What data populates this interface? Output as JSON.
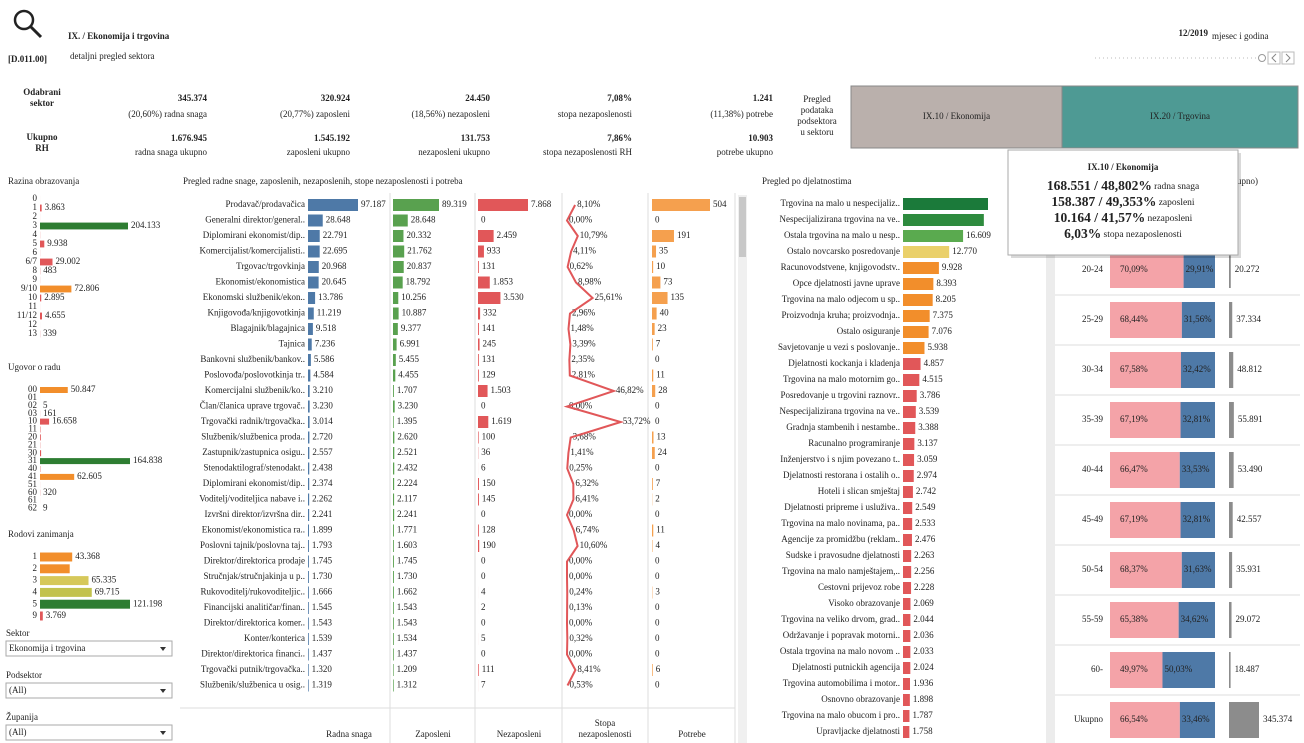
{
  "header": {
    "code": "[D.011.00]",
    "title": "IX. / Ekonomija i trgovina",
    "subtitle": "detaljni pregled sektora",
    "period": "12/2019",
    "period_label": "mjesec i godina"
  },
  "kpi": {
    "row_labels": [
      [
        "Odabrani",
        "sektor"
      ],
      [
        "Ukupno",
        "RH"
      ]
    ],
    "items": [
      {
        "value": "345.374",
        "label": "(20,60%) radna snaga",
        "total": "1.676.945",
        "total_label": "radna snaga ukupno"
      },
      {
        "value": "320.924",
        "label": "(20,77%) zaposleni",
        "total": "1.545.192",
        "total_label": "zaposleni ukupno"
      },
      {
        "value": "24.450",
        "label": "(18,56%) nezaposleni",
        "total": "131.753",
        "total_label": "nezaposleni ukupno"
      },
      {
        "value": "7,08%",
        "label": "stopa nezaposlenosti",
        "total": "7,86%",
        "total_label": "stopa nezaposlenosti RH"
      },
      {
        "value": "1.241",
        "label": "(11,38%) potrebe",
        "total": "10.903",
        "total_label": "potrebe ukupno"
      }
    ]
  },
  "subsectors": {
    "label_lines": [
      "Pregled",
      "podataka",
      "podsektora",
      "u sektoru"
    ],
    "buttons": [
      "IX.10 / Ekonomija",
      "IX.20 / Trgovina"
    ],
    "colors": [
      "#bab0ac",
      "#4e9a94"
    ]
  },
  "education": {
    "title": "Razina obrazovanja",
    "categories": [
      "0",
      "1",
      "2",
      "3",
      "4",
      "5",
      "6",
      "6/7",
      "8",
      "9",
      "9/10",
      "10",
      "11",
      "11/12",
      "12",
      "13"
    ],
    "values": [
      50,
      3863,
      100,
      204133,
      300,
      9938,
      200,
      29002,
      483,
      200,
      72806,
      2895,
      100,
      4655,
      50,
      339
    ],
    "value_labels": [
      null,
      "3.863",
      null,
      "204.133",
      null,
      "9.938",
      null,
      "29.002",
      "483",
      null,
      "72.806",
      "2.895",
      null,
      "4.655",
      null,
      "339"
    ],
    "colors": [
      "#e15759",
      "#e15759",
      "#e15759",
      "#2e7d32",
      "#e15759",
      "#e15759",
      "#e15759",
      "#e15759",
      "#e15759",
      "#e15759",
      "#f28e2b",
      "#e15759",
      "#e15759",
      "#e15759",
      "#e15759",
      "#e15759"
    ]
  },
  "contract": {
    "title": "Ugovor o radu",
    "categories": [
      "00",
      "01",
      "02",
      "03",
      "10",
      "11",
      "20",
      "21",
      "30",
      "31",
      "40",
      "41",
      "51",
      "60",
      "61",
      "62"
    ],
    "values": [
      50847,
      30,
      5,
      161,
      16658,
      800,
      1500,
      400,
      2000,
      164838,
      600,
      62605,
      100,
      320,
      50,
      9
    ],
    "value_labels": [
      "50.847",
      null,
      "5",
      "161",
      "16.658",
      null,
      null,
      null,
      null,
      "164.838",
      null,
      "62.605",
      null,
      "320",
      null,
      "9"
    ],
    "colors": [
      "#f28e2b",
      "#e15759",
      "#e15759",
      "#e15759",
      "#e15759",
      "#e15759",
      "#e15759",
      "#e15759",
      "#e15759",
      "#2e7d32",
      "#e15759",
      "#f28e2b",
      "#e15759",
      "#e15759",
      "#e15759",
      "#e15759"
    ]
  },
  "occupation_groups": {
    "title": "Rodovi zanimanja",
    "categories": [
      "1",
      "2",
      "3",
      "4",
      "5",
      "9"
    ],
    "values": [
      43368,
      40000,
      65335,
      69715,
      121198,
      3769
    ],
    "value_labels": [
      "43.368",
      null,
      "65.335",
      "69.715",
      "121.198",
      "3.769"
    ],
    "colors": [
      "#f28e2b",
      "#f28e2b",
      "#d6c85a",
      "#c2c24e",
      "#2e7d32",
      "#e15759"
    ]
  },
  "filters": [
    {
      "label": "Sektor",
      "value": "Ekonomija i trgovina"
    },
    {
      "label": "Podsektor",
      "value": "(All)"
    },
    {
      "label": "Županija",
      "value": "(All)"
    }
  ],
  "occupations": {
    "title": "Pregled radne snage, zaposlenih, nezaposlenih, stope nezaposlenosti i potreba",
    "names": [
      "Prodavač/prodavačica",
      "Generalni direktor/general..",
      "Diplomirani ekonomist/dip..",
      "Komercijalist/komercijalisti..",
      "Trgovac/trgovkinja",
      "Ekonomist/ekonomistica",
      "Ekonomski službenik/ekon..",
      "Knjigovođa/knjigovotkinja",
      "Blagajnik/blagajnica",
      "Tajnica",
      "Bankovni službenik/bankov..",
      "Poslovođa/poslovotkinja tr..",
      "Komercijalni službenik/ko..",
      "Član/članica uprave trgovač..",
      "Trgovački radnik/trgovačka..",
      "Službenik/službenica proda..",
      "Zastupnik/zastupnica osigu..",
      "Stenodaktilograf/stenodakt..",
      "Diplomirani ekonomist/dip..",
      "Voditelj/voditeljica nabave i..",
      "Izvršni direktor/izvršna dir..",
      "Ekonomist/ekonomistica ra..",
      "Poslovni tajnik/poslovna taj..",
      "Direktor/direktorica prodaje",
      "Stručnjak/stručnjakinja u p..",
      "Rukovoditelj/rukovoditeljic..",
      "Financijski analitičar/finan..",
      "Direktor/direktorica komer..",
      "Konter/konterica",
      "Direktor/direktorica financi..",
      "Trgovački putnik/trgovačka..",
      "Službenik/službenica u osig.."
    ],
    "columns": [
      {
        "name_lines": [
          "Radna snaga"
        ],
        "type": "bar",
        "color": "#4e79a7",
        "values": [
          97187,
          28648,
          22791,
          22695,
          20968,
          20645,
          13786,
          11219,
          9518,
          7236,
          5586,
          4584,
          3210,
          3230,
          3014,
          2720,
          2557,
          2438,
          2374,
          2262,
          2241,
          1899,
          1793,
          1745,
          1730,
          1666,
          1545,
          1543,
          1539,
          1437,
          1320,
          1319
        ],
        "value_labels": [
          "97.187",
          "28.648",
          "22.791",
          "22.695",
          "20.968",
          "20.645",
          "13.786",
          "11.219",
          "9.518",
          "7.236",
          "5.586",
          "4.584",
          "3.210",
          "3.230",
          "3.014",
          "2.720",
          "2.557",
          "2.438",
          "2.374",
          "2.262",
          "2.241",
          "1.899",
          "1.793",
          "1.745",
          "1.730",
          "1.666",
          "1.545",
          "1.543",
          "1.539",
          "1.437",
          "1.320",
          "1.319"
        ]
      },
      {
        "name_lines": [
          "Zaposleni"
        ],
        "type": "bar",
        "color": "#59a14f",
        "values": [
          89319,
          28648,
          20332,
          21762,
          20837,
          18792,
          10256,
          10887,
          9377,
          6991,
          5455,
          4455,
          1707,
          3230,
          1395,
          2620,
          2521,
          2432,
          2224,
          2117,
          2241,
          1771,
          1603,
          1745,
          1730,
          1662,
          1543,
          1543,
          1534,
          1437,
          1209,
          1312
        ],
        "value_labels": [
          "89.319",
          "28.648",
          "20.332",
          "21.762",
          "20.837",
          "18.792",
          "10.256",
          "10.887",
          "9.377",
          "6.991",
          "5.455",
          "4.455",
          "1.707",
          "3.230",
          "1.395",
          "2.620",
          "2.521",
          "2.432",
          "2.224",
          "2.117",
          "2.241",
          "1.771",
          "1.603",
          "1.745",
          "1.730",
          "1.662",
          "1.543",
          "1.543",
          "1.534",
          "1.437",
          "1.209",
          "1.312"
        ]
      },
      {
        "name_lines": [
          "Nezaposleni"
        ],
        "type": "bar",
        "color": "#e15759",
        "values": [
          7868,
          0,
          2459,
          933,
          131,
          1853,
          3530,
          332,
          141,
          245,
          131,
          129,
          1503,
          0,
          1619,
          100,
          36,
          6,
          150,
          145,
          0,
          128,
          190,
          0,
          0,
          4,
          2,
          0,
          5,
          0,
          111,
          7
        ],
        "value_labels": [
          "7.868",
          "0",
          "2.459",
          "933",
          "131",
          "1.853",
          "3.530",
          "332",
          "141",
          "245",
          "131",
          "129",
          "1.503",
          "0",
          "1.619",
          "100",
          "36",
          "6",
          "150",
          "145",
          "0",
          "128",
          "190",
          "0",
          "0",
          "4",
          "2",
          "0",
          "5",
          "0",
          "111",
          "7"
        ]
      },
      {
        "name_lines": [
          "Stopa",
          "nezaposlenosti"
        ],
        "type": "line",
        "color": "#e15759",
        "values": [
          8.1,
          0.0,
          10.79,
          4.11,
          0.62,
          8.98,
          25.61,
          2.96,
          1.48,
          3.39,
          2.35,
          2.81,
          46.82,
          0.0,
          53.72,
          3.68,
          1.41,
          0.25,
          6.32,
          6.41,
          0.0,
          6.74,
          10.6,
          0.0,
          0.0,
          0.24,
          0.13,
          0.0,
          0.32,
          0.0,
          8.41,
          0.53
        ],
        "value_labels": [
          "8,10%",
          "0,00%",
          "10,79%",
          "4,11%",
          "0,62%",
          "8,98%",
          "25,61%",
          "2,96%",
          "1,48%",
          "3,39%",
          "2,35%",
          "2,81%",
          "46,82%",
          "0,00%",
          "53,72%",
          "3,68%",
          "1,41%",
          "0,25%",
          "6,32%",
          "6,41%",
          "0,00%",
          "6,74%",
          "10,60%",
          "0,00%",
          "0,00%",
          "0,24%",
          "0,13%",
          "0,00%",
          "0,32%",
          "0,00%",
          "8,41%",
          "0,53%"
        ]
      },
      {
        "name_lines": [
          "Potrebe"
        ],
        "type": "bar",
        "color": "#f5a04e",
        "values": [
          504,
          0,
          191,
          35,
          10,
          73,
          135,
          40,
          23,
          7,
          0,
          11,
          28,
          0,
          0,
          13,
          24,
          0,
          7,
          2,
          0,
          11,
          4,
          0,
          0,
          3,
          0,
          0,
          0,
          0,
          6,
          0
        ],
        "value_labels": [
          "504",
          "0",
          "191",
          "35",
          "10",
          "73",
          "135",
          "40",
          "23",
          "7",
          "0",
          "11",
          "28",
          "0",
          "0",
          "13",
          "24",
          "0",
          "7",
          "2",
          "0",
          "11",
          "4",
          "0",
          "0",
          "3",
          "0",
          "0",
          "0",
          "0",
          "6",
          "0"
        ]
      }
    ]
  },
  "activities": {
    "title": "Pregled po djelatnostima",
    "categories": [
      "Trgovina na malo u nespecijaliz..",
      "Nespecijalizirana trgovina na ve..",
      "Ostala trgovina na malo u nesp..",
      "Ostalo novcarsko posredovanje",
      "Racunovodstvene, knjigovodstv..",
      "Opce djelatnosti javne uprave",
      "Trgovina na malo odjecom u sp..",
      "Proizvodnja kruha; proizvodnja..",
      "Ostalo osiguranje",
      "Savjetovanje u vezi s poslovanje..",
      "Djelatnosti kockanja i kladenja",
      "Trgovina na malo motornim go..",
      "Posredovanje u trgovini raznovr..",
      "Nespecijalizirana trgovina na ve..",
      "Gradnja stambenih i nestambe..",
      "Racunalno programiranje",
      "Inženjerstvo i s njim povezano t..",
      "Djelatnosti restorana i ostalih o..",
      "Hoteli i slican smještaj",
      "Djelatnosti pripreme i usluživa..",
      "Trgovina na malo novinama, pa..",
      "Agencije za promidžbu (reklam..",
      "Sudske i pravosudne djelatnosti",
      "Trgovina na malo namještajem,..",
      "Cestovni prijevoz robe",
      "Visoko obrazovanje",
      "Trgovina na veliko drvom, grad..",
      "Održavanje i popravak motorni..",
      "Ostala trgovina na malo novom ..",
      "Djelatnosti putnickih agencija",
      "Trgovina automobilima i motor..",
      "Osnovno obrazovanje",
      "Trgovina na malo obucom i pro..",
      "Upravljacke djelatnosti"
    ],
    "values": [
      23500,
      22350,
      16609,
      12770,
      9928,
      8393,
      8205,
      7375,
      7076,
      5938,
      4857,
      4515,
      3786,
      3539,
      3388,
      3137,
      3059,
      2974,
      2742,
      2549,
      2533,
      2476,
      2263,
      2256,
      2228,
      2069,
      2044,
      2036,
      2033,
      2024,
      1936,
      1898,
      1787,
      1758
    ],
    "value_labels": [
      null,
      null,
      "16.609",
      "12.770",
      "9.928",
      "8.393",
      "8.205",
      "7.375",
      "7.076",
      "5.938",
      "4.857",
      "4.515",
      "3.786",
      "3.539",
      "3.388",
      "3.137",
      "3.059",
      "2.974",
      "2.742",
      "2.549",
      "2.533",
      "2.476",
      "2.263",
      "2.256",
      "2.228",
      "2.069",
      "2.044",
      "2.036",
      "2.033",
      "2.024",
      "1.936",
      "1.898",
      "1.787",
      "1.758"
    ],
    "colors": [
      "#1b7a3a",
      "#2e8b3e",
      "#5aaa4f",
      "#ead06a",
      "#f28e2b",
      "#f28e2b",
      "#f28e2b",
      "#f28e2b",
      "#f28e2b",
      "#f28e2b",
      "#e15759",
      "#e15759",
      "#e15759",
      "#e15759",
      "#e15759",
      "#e15759",
      "#e15759",
      "#e15759",
      "#e15759",
      "#e15759",
      "#e15759",
      "#e15759",
      "#e15759",
      "#e15759",
      "#e15759",
      "#e15759",
      "#e15759",
      "#e15759",
      "#e15759",
      "#e15759",
      "#e15759",
      "#e15759",
      "#e15759",
      "#e15759"
    ]
  },
  "age": {
    "title": "ukupno)",
    "groups": [
      "20-24",
      "25-29",
      "30-34",
      "35-39",
      "40-44",
      "45-49",
      "50-54",
      "55-59",
      "60-",
      "Ukupno"
    ],
    "series": [
      {
        "color": "#f4a3a8",
        "values": [
          70.09,
          68.44,
          67.58,
          67.19,
          66.47,
          67.19,
          68.37,
          65.38,
          49.97,
          66.54
        ],
        "value_labels": [
          "70,09%",
          "68,44%",
          "67,58%",
          "67,19%",
          "66,47%",
          "67,19%",
          "68,37%",
          "65,38%",
          "49,97%",
          "66,54%"
        ]
      },
      {
        "color": "#4e79a7",
        "values": [
          29.91,
          31.56,
          32.42,
          32.81,
          33.53,
          32.81,
          31.63,
          34.62,
          50.03,
          33.46
        ],
        "value_labels": [
          "29,91%",
          "31,56%",
          "32,42%",
          "32,81%",
          "33,53%",
          "32,81%",
          "31,63%",
          "34,62%",
          "50,03%",
          "33,46%"
        ]
      }
    ],
    "totals": {
      "color": "#8c8c8c",
      "values": [
        20272,
        37334,
        48812,
        55891,
        53490,
        42557,
        35931,
        29072,
        18487,
        345374
      ],
      "value_labels": [
        "20.272",
        "37.334",
        "48.812",
        "55.891",
        "53.490",
        "42.557",
        "35.931",
        "29.072",
        "18.487",
        "345.374"
      ]
    }
  },
  "tooltip": {
    "title": "IX.10 / Ekonomija",
    "lines": [
      {
        "value": "168.551 / 48,802%",
        "label": "radna snaga"
      },
      {
        "value": "158.387 / 49,353%",
        "label": "zaposleni"
      },
      {
        "value": "10.164 / 41,57%",
        "label": "nezaposleni"
      },
      {
        "value": "6,03%",
        "label": "stopa nezaposlenosti"
      }
    ]
  }
}
